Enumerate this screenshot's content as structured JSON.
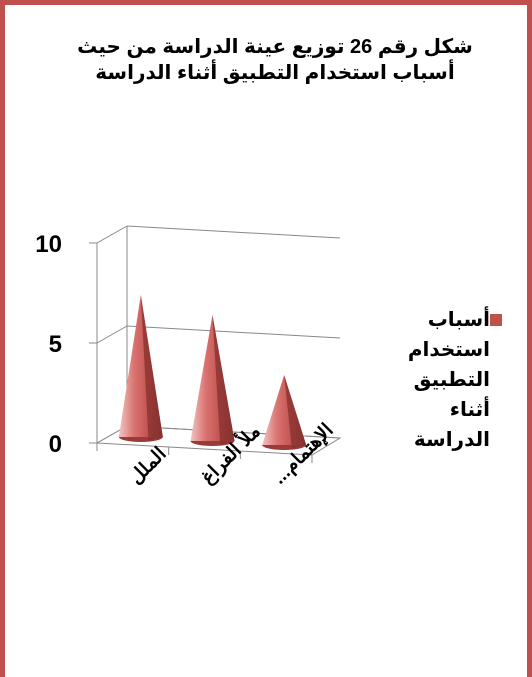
{
  "chart_data": {
    "type": "bar",
    "variant": "3d-cone",
    "title": "شكل رقم 26 توزيع عينة الدراسة من حيث أسباب استخدام التطبيق أثناء الدراسة",
    "categories": [
      "الملل",
      "ملأ الفراغ",
      "الإهتمام..."
    ],
    "series": [
      {
        "name": "أسباب استخدام التطبيق أثناء الدراسة",
        "values": [
          7,
          6,
          3
        ]
      }
    ],
    "ylim": [
      0,
      10
    ],
    "yticks": [
      "0",
      "5",
      "10"
    ],
    "grid": true,
    "legend_position": "right",
    "color": "#c0504d"
  }
}
